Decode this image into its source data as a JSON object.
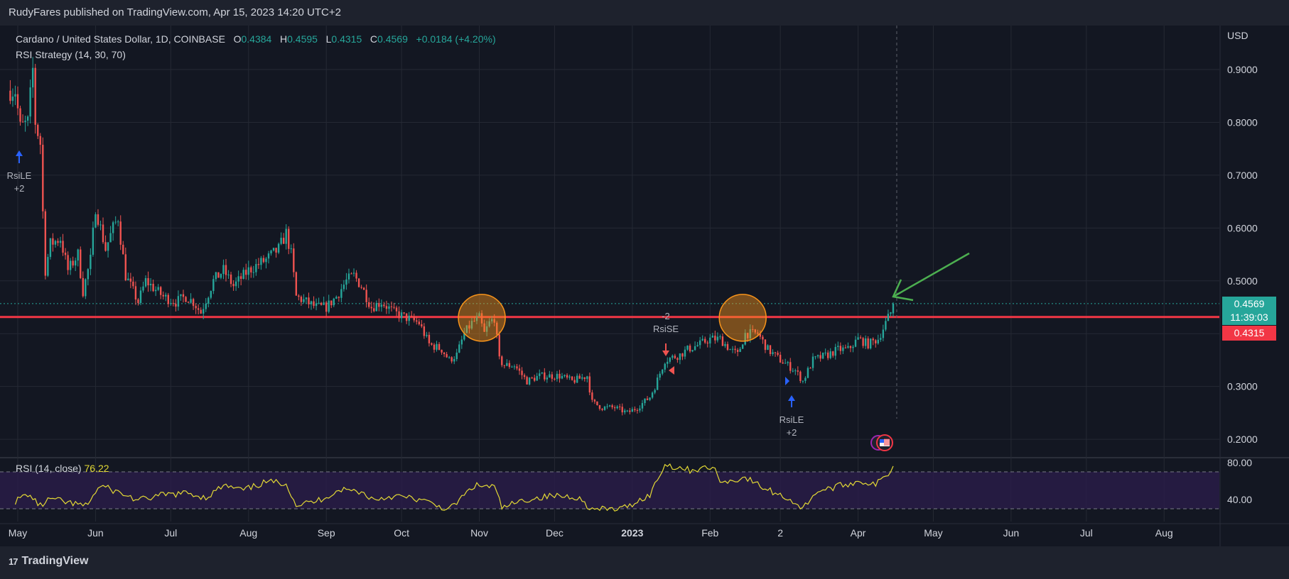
{
  "header": {
    "published_text": "RudyFares published on TradingView.com, Apr 15, 2023 14:20 UTC+2"
  },
  "legend": {
    "symbol": "Cardano / United States Dollar, 1D, COINBASE",
    "open_label": "O",
    "open": "0.4384",
    "high_label": "H",
    "high": "0.4595",
    "low_label": "L",
    "low": "0.4315",
    "close_label": "C",
    "close": "0.4569",
    "change": "+0.0184 (+4.20%)",
    "strategy": "RSI Strategy (14, 30, 70)"
  },
  "rsi_legend": {
    "label": "RSI (14, close)",
    "value": "76.22"
  },
  "price_scale": {
    "currency": "USD",
    "ticks": [
      "0.9000",
      "0.8000",
      "0.7000",
      "0.6000",
      "0.5000",
      "0.3000",
      "0.2000"
    ]
  },
  "rsi_scale": {
    "ticks": [
      "80.00",
      "40.00"
    ]
  },
  "badges": {
    "close_price": "0.4569",
    "countdown": "11:39:03",
    "low_price": "0.4315"
  },
  "time_axis": {
    "labels": [
      "May",
      "Jun",
      "Jul",
      "Aug",
      "Sep",
      "Oct",
      "Nov",
      "Dec",
      "2023",
      "Feb",
      "2",
      "Apr",
      "May",
      "Jun",
      "Jul",
      "Aug"
    ]
  },
  "signals": [
    {
      "name": "rsile-start",
      "text": "RsiLE",
      "qty": "+2",
      "direction": "long"
    },
    {
      "name": "rsise",
      "text": "RsiSE",
      "qty": "-2",
      "direction": "short"
    },
    {
      "name": "rsile-march",
      "text": "RsiLE",
      "qty": "+2",
      "direction": "long"
    }
  ],
  "footer": {
    "brand": "TradingView"
  },
  "colors": {
    "bg": "#131722",
    "up": "#26a69a",
    "down": "#ef5350",
    "support_line": "#f23645",
    "rsi_line": "#e3d935",
    "rsi_band": "#2a1d4a",
    "circle": "#f7931a",
    "arrow": "#4caf50",
    "signal_long": "#2962ff"
  },
  "chart_data": {
    "type": "candlestick",
    "title": "Cardano / United States Dollar, 1D, COINBASE",
    "currency": "USD",
    "x_range": [
      "2022-05-01",
      "2023-08-31"
    ],
    "y_range": [
      0.17,
      0.98
    ],
    "support_level": 0.4315,
    "last": {
      "open": 0.4384,
      "high": 0.4595,
      "low": 0.4315,
      "close": 0.4569
    },
    "price_path": [
      [
        "2022-04-30",
        0.86
      ],
      [
        "2022-05-02",
        0.79
      ],
      [
        "2022-05-05",
        0.8
      ],
      [
        "2022-05-07",
        0.9
      ],
      [
        "2022-05-08",
        0.8
      ],
      [
        "2022-05-10",
        0.76
      ],
      [
        "2022-05-11",
        0.63
      ],
      [
        "2022-05-12",
        0.52
      ],
      [
        "2022-05-14",
        0.57
      ],
      [
        "2022-05-18",
        0.58
      ],
      [
        "2022-05-21",
        0.52
      ],
      [
        "2022-05-25",
        0.55
      ],
      [
        "2022-05-27",
        0.48
      ],
      [
        "2022-05-30",
        0.54
      ],
      [
        "2022-06-01",
        0.64
      ],
      [
        "2022-06-05",
        0.56
      ],
      [
        "2022-06-08",
        0.6
      ],
      [
        "2022-06-10",
        0.62
      ],
      [
        "2022-06-11",
        0.58
      ],
      [
        "2022-06-13",
        0.51
      ],
      [
        "2022-06-18",
        0.46
      ],
      [
        "2022-06-21",
        0.5
      ],
      [
        "2022-06-28",
        0.47
      ],
      [
        "2022-07-03",
        0.46
      ],
      [
        "2022-07-07",
        0.47
      ],
      [
        "2022-07-10",
        0.46
      ],
      [
        "2022-07-13",
        0.44
      ],
      [
        "2022-07-18",
        0.5
      ],
      [
        "2022-07-22",
        0.52
      ],
      [
        "2022-07-26",
        0.49
      ],
      [
        "2022-08-01",
        0.52
      ],
      [
        "2022-08-08",
        0.54
      ],
      [
        "2022-08-13",
        0.56
      ],
      [
        "2022-08-14",
        0.57
      ],
      [
        "2022-08-16",
        0.59
      ],
      [
        "2022-08-18",
        0.55
      ],
      [
        "2022-08-20",
        0.47
      ],
      [
        "2022-08-24",
        0.46
      ],
      [
        "2022-08-28",
        0.45
      ],
      [
        "2022-09-01",
        0.45
      ],
      [
        "2022-09-05",
        0.47
      ],
      [
        "2022-09-09",
        0.5
      ],
      [
        "2022-09-12",
        0.51
      ],
      [
        "2022-09-15",
        0.49
      ],
      [
        "2022-09-19",
        0.45
      ],
      [
        "2022-09-23",
        0.46
      ],
      [
        "2022-09-28",
        0.44
      ],
      [
        "2022-10-03",
        0.43
      ],
      [
        "2022-10-08",
        0.42
      ],
      [
        "2022-10-12",
        0.38
      ],
      [
        "2022-10-17",
        0.37
      ],
      [
        "2022-10-20",
        0.35
      ],
      [
        "2022-10-23",
        0.36
      ],
      [
        "2022-10-26",
        0.4
      ],
      [
        "2022-10-29",
        0.42
      ],
      [
        "2022-11-01",
        0.43
      ],
      [
        "2022-11-03",
        0.4
      ],
      [
        "2022-11-05",
        0.42
      ],
      [
        "2022-11-07",
        0.43
      ],
      [
        "2022-11-09",
        0.35
      ],
      [
        "2022-11-11",
        0.34
      ],
      [
        "2022-11-15",
        0.34
      ],
      [
        "2022-11-20",
        0.31
      ],
      [
        "2022-11-25",
        0.32
      ],
      [
        "2022-11-30",
        0.32
      ],
      [
        "2022-12-03",
        0.32
      ],
      [
        "2022-12-08",
        0.31
      ],
      [
        "2022-12-14",
        0.32
      ],
      [
        "2022-12-16",
        0.27
      ],
      [
        "2022-12-20",
        0.26
      ],
      [
        "2022-12-25",
        0.26
      ],
      [
        "2022-12-30",
        0.25
      ],
      [
        "2023-01-03",
        0.26
      ],
      [
        "2023-01-08",
        0.28
      ],
      [
        "2023-01-10",
        0.3
      ],
      [
        "2023-01-14",
        0.35
      ],
      [
        "2023-01-20",
        0.36
      ],
      [
        "2023-01-23",
        0.37
      ],
      [
        "2023-01-28",
        0.38
      ],
      [
        "2023-02-01",
        0.39
      ],
      [
        "2023-02-05",
        0.39
      ],
      [
        "2023-02-09",
        0.37
      ],
      [
        "2023-02-12",
        0.36
      ],
      [
        "2023-02-15",
        0.4
      ],
      [
        "2023-02-20",
        0.4
      ],
      [
        "2023-02-24",
        0.37
      ],
      [
        "2023-03-01",
        0.35
      ],
      [
        "2023-03-07",
        0.33
      ],
      [
        "2023-03-10",
        0.31
      ],
      [
        "2023-03-14",
        0.35
      ],
      [
        "2023-03-20",
        0.36
      ],
      [
        "2023-03-24",
        0.37
      ],
      [
        "2023-03-28",
        0.37
      ],
      [
        "2023-04-01",
        0.39
      ],
      [
        "2023-04-05",
        0.38
      ],
      [
        "2023-04-09",
        0.39
      ],
      [
        "2023-04-12",
        0.42
      ],
      [
        "2023-04-14",
        0.44
      ],
      [
        "2023-04-15",
        0.4569
      ]
    ],
    "rsi_path": [
      [
        "2022-04-30",
        38
      ],
      [
        "2022-05-05",
        46
      ],
      [
        "2022-05-10",
        33
      ],
      [
        "2022-05-14",
        41
      ],
      [
        "2022-05-20",
        37
      ],
      [
        "2022-05-28",
        33
      ],
      [
        "2022-06-03",
        55
      ],
      [
        "2022-06-10",
        48
      ],
      [
        "2022-06-18",
        39
      ],
      [
        "2022-06-28",
        45
      ],
      [
        "2022-07-08",
        47
      ],
      [
        "2022-07-15",
        42
      ],
      [
        "2022-07-22",
        55
      ],
      [
        "2022-07-30",
        50
      ],
      [
        "2022-08-08",
        59
      ],
      [
        "2022-08-16",
        58
      ],
      [
        "2022-08-20",
        34
      ],
      [
        "2022-08-28",
        38
      ],
      [
        "2022-09-07",
        51
      ],
      [
        "2022-09-14",
        49
      ],
      [
        "2022-09-20",
        40
      ],
      [
        "2022-09-28",
        44
      ],
      [
        "2022-10-08",
        40
      ],
      [
        "2022-10-20",
        29
      ],
      [
        "2022-10-30",
        55
      ],
      [
        "2022-11-07",
        54
      ],
      [
        "2022-11-10",
        31
      ],
      [
        "2022-11-20",
        40
      ],
      [
        "2022-11-30",
        44
      ],
      [
        "2022-12-10",
        43
      ],
      [
        "2022-12-16",
        29
      ],
      [
        "2022-12-28",
        30
      ],
      [
        "2023-01-08",
        45
      ],
      [
        "2023-01-14",
        78
      ],
      [
        "2023-01-24",
        72
      ],
      [
        "2023-02-02",
        75
      ],
      [
        "2023-02-06",
        58
      ],
      [
        "2023-02-15",
        64
      ],
      [
        "2023-02-22",
        53
      ],
      [
        "2023-03-05",
        40
      ],
      [
        "2023-03-10",
        30
      ],
      [
        "2023-03-15",
        48
      ],
      [
        "2023-03-25",
        55
      ],
      [
        "2023-04-02",
        60
      ],
      [
        "2023-04-08",
        56
      ],
      [
        "2023-04-13",
        68
      ],
      [
        "2023-04-15",
        76.22
      ]
    ],
    "rsi_levels": {
      "upper": 70,
      "lower": 30,
      "range": [
        20,
        88
      ]
    }
  }
}
